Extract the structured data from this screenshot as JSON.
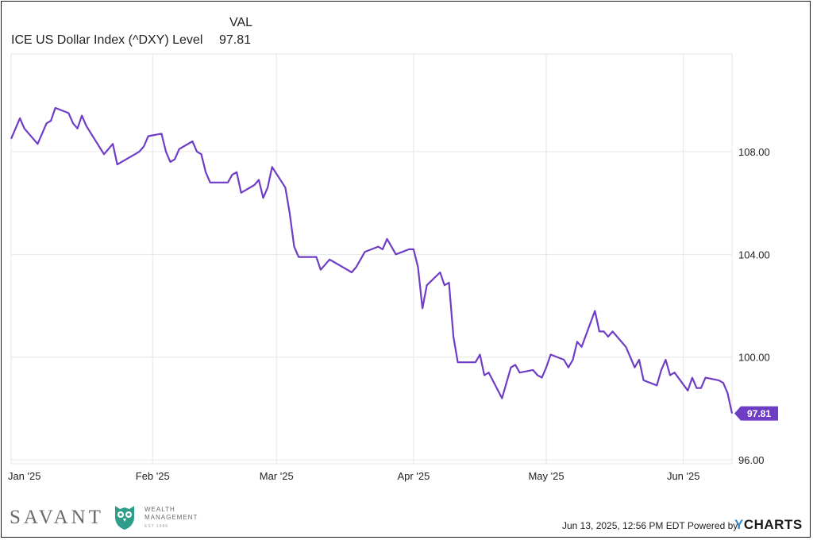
{
  "legend": {
    "column_header": "VAL",
    "series_name": "ICE US Dollar Index (^DXY) Level",
    "series_value": "97.81"
  },
  "chart_data": {
    "type": "line",
    "x_tick_labels": [
      "Jan '25",
      "Feb '25",
      "Mar '25",
      "Apr '25",
      "May '25",
      "Jun '25"
    ],
    "y_tick_labels": [
      "108.00",
      "104.00",
      "100.00",
      "96.00"
    ],
    "y_ticks": [
      108,
      104,
      100,
      96
    ],
    "ylim": [
      95.85,
      111.8
    ],
    "xlim": [
      "2024-12-31",
      "2025-06-12"
    ],
    "grid": true,
    "series": [
      {
        "name": "ICE US Dollar Index (^DXY) Level",
        "color": "#6f3cc6",
        "last_value_label": "97.81",
        "points": [
          [
            "2024-12-31",
            108.5
          ],
          [
            "2025-01-02",
            109.3
          ],
          [
            "2025-01-03",
            108.9
          ],
          [
            "2025-01-06",
            108.3
          ],
          [
            "2025-01-07",
            108.7
          ],
          [
            "2025-01-08",
            109.1
          ],
          [
            "2025-01-09",
            109.2
          ],
          [
            "2025-01-10",
            109.7
          ],
          [
            "2025-01-13",
            109.5
          ],
          [
            "2025-01-14",
            109.1
          ],
          [
            "2025-01-15",
            108.9
          ],
          [
            "2025-01-16",
            109.4
          ],
          [
            "2025-01-17",
            109.0
          ],
          [
            "2025-01-21",
            107.9
          ],
          [
            "2025-01-22",
            108.1
          ],
          [
            "2025-01-23",
            108.3
          ],
          [
            "2025-01-24",
            107.5
          ],
          [
            "2025-01-27",
            107.8
          ],
          [
            "2025-01-28",
            107.9
          ],
          [
            "2025-01-29",
            108.0
          ],
          [
            "2025-01-30",
            108.2
          ],
          [
            "2025-01-31",
            108.6
          ],
          [
            "2025-02-03",
            108.7
          ],
          [
            "2025-02-04",
            108.0
          ],
          [
            "2025-02-05",
            107.6
          ],
          [
            "2025-02-06",
            107.7
          ],
          [
            "2025-02-07",
            108.1
          ],
          [
            "2025-02-10",
            108.4
          ],
          [
            "2025-02-11",
            108.0
          ],
          [
            "2025-02-12",
            107.9
          ],
          [
            "2025-02-13",
            107.2
          ],
          [
            "2025-02-14",
            106.8
          ],
          [
            "2025-02-18",
            106.8
          ],
          [
            "2025-02-19",
            107.1
          ],
          [
            "2025-02-20",
            107.2
          ],
          [
            "2025-02-21",
            106.4
          ],
          [
            "2025-02-24",
            106.7
          ],
          [
            "2025-02-25",
            106.9
          ],
          [
            "2025-02-26",
            106.2
          ],
          [
            "2025-02-27",
            106.6
          ],
          [
            "2025-02-28",
            107.4
          ],
          [
            "2025-03-03",
            106.6
          ],
          [
            "2025-03-04",
            105.6
          ],
          [
            "2025-03-05",
            104.3
          ],
          [
            "2025-03-06",
            103.9
          ],
          [
            "2025-03-07",
            103.9
          ],
          [
            "2025-03-10",
            103.9
          ],
          [
            "2025-03-11",
            103.4
          ],
          [
            "2025-03-12",
            103.6
          ],
          [
            "2025-03-13",
            103.8
          ],
          [
            "2025-03-14",
            103.7
          ],
          [
            "2025-03-17",
            103.4
          ],
          [
            "2025-03-18",
            103.3
          ],
          [
            "2025-03-19",
            103.5
          ],
          [
            "2025-03-20",
            103.8
          ],
          [
            "2025-03-21",
            104.1
          ],
          [
            "2025-03-24",
            104.3
          ],
          [
            "2025-03-25",
            104.2
          ],
          [
            "2025-03-26",
            104.6
          ],
          [
            "2025-03-27",
            104.3
          ],
          [
            "2025-03-28",
            104.0
          ],
          [
            "2025-03-31",
            104.2
          ],
          [
            "2025-04-01",
            104.2
          ],
          [
            "2025-04-02",
            103.5
          ],
          [
            "2025-04-03",
            101.9
          ],
          [
            "2025-04-04",
            102.8
          ],
          [
            "2025-04-07",
            103.3
          ],
          [
            "2025-04-08",
            102.8
          ],
          [
            "2025-04-09",
            102.9
          ],
          [
            "2025-04-10",
            100.8
          ],
          [
            "2025-04-11",
            99.8
          ],
          [
            "2025-04-14",
            99.8
          ],
          [
            "2025-04-15",
            99.8
          ],
          [
            "2025-04-16",
            100.1
          ],
          [
            "2025-04-17",
            99.3
          ],
          [
            "2025-04-18",
            99.4
          ],
          [
            "2025-04-21",
            98.4
          ],
          [
            "2025-04-22",
            99.0
          ],
          [
            "2025-04-23",
            99.6
          ],
          [
            "2025-04-24",
            99.7
          ],
          [
            "2025-04-25",
            99.4
          ],
          [
            "2025-04-28",
            99.5
          ],
          [
            "2025-04-29",
            99.3
          ],
          [
            "2025-04-30",
            99.2
          ],
          [
            "2025-05-01",
            99.6
          ],
          [
            "2025-05-02",
            100.1
          ],
          [
            "2025-05-05",
            99.9
          ],
          [
            "2025-05-06",
            99.6
          ],
          [
            "2025-05-07",
            99.9
          ],
          [
            "2025-05-08",
            100.6
          ],
          [
            "2025-05-09",
            100.4
          ],
          [
            "2025-05-12",
            101.8
          ],
          [
            "2025-05-13",
            101.0
          ],
          [
            "2025-05-14",
            101.0
          ],
          [
            "2025-05-15",
            100.8
          ],
          [
            "2025-05-16",
            101.0
          ],
          [
            "2025-05-19",
            100.4
          ],
          [
            "2025-05-20",
            100.0
          ],
          [
            "2025-05-21",
            99.6
          ],
          [
            "2025-05-22",
            99.9
          ],
          [
            "2025-05-23",
            99.1
          ],
          [
            "2025-05-26",
            98.9
          ],
          [
            "2025-05-27",
            99.5
          ],
          [
            "2025-05-28",
            99.9
          ],
          [
            "2025-05-29",
            99.3
          ],
          [
            "2025-05-30",
            99.4
          ],
          [
            "2025-06-02",
            98.7
          ],
          [
            "2025-06-03",
            99.2
          ],
          [
            "2025-06-04",
            98.8
          ],
          [
            "2025-06-05",
            98.8
          ],
          [
            "2025-06-06",
            99.2
          ],
          [
            "2025-06-09",
            99.1
          ],
          [
            "2025-06-10",
            99.0
          ],
          [
            "2025-06-11",
            98.6
          ],
          [
            "2025-06-12",
            97.81
          ]
        ]
      }
    ]
  },
  "footer": {
    "timestamp": "Jun 13, 2025, 12:56 PM EDT Powered by",
    "ycharts_y": "Y",
    "ycharts_rest": "CHARTS",
    "brand_name": "SAVANT",
    "brand_wealth": "WEALTH",
    "brand_management": "MANAGEMENT",
    "brand_est": "EST 1986"
  },
  "colors": {
    "line": "#6f3cc6",
    "grid": "#e6e6e6",
    "ycharts_accent": "#2f8ad0",
    "owl": "#2e9d8a"
  }
}
